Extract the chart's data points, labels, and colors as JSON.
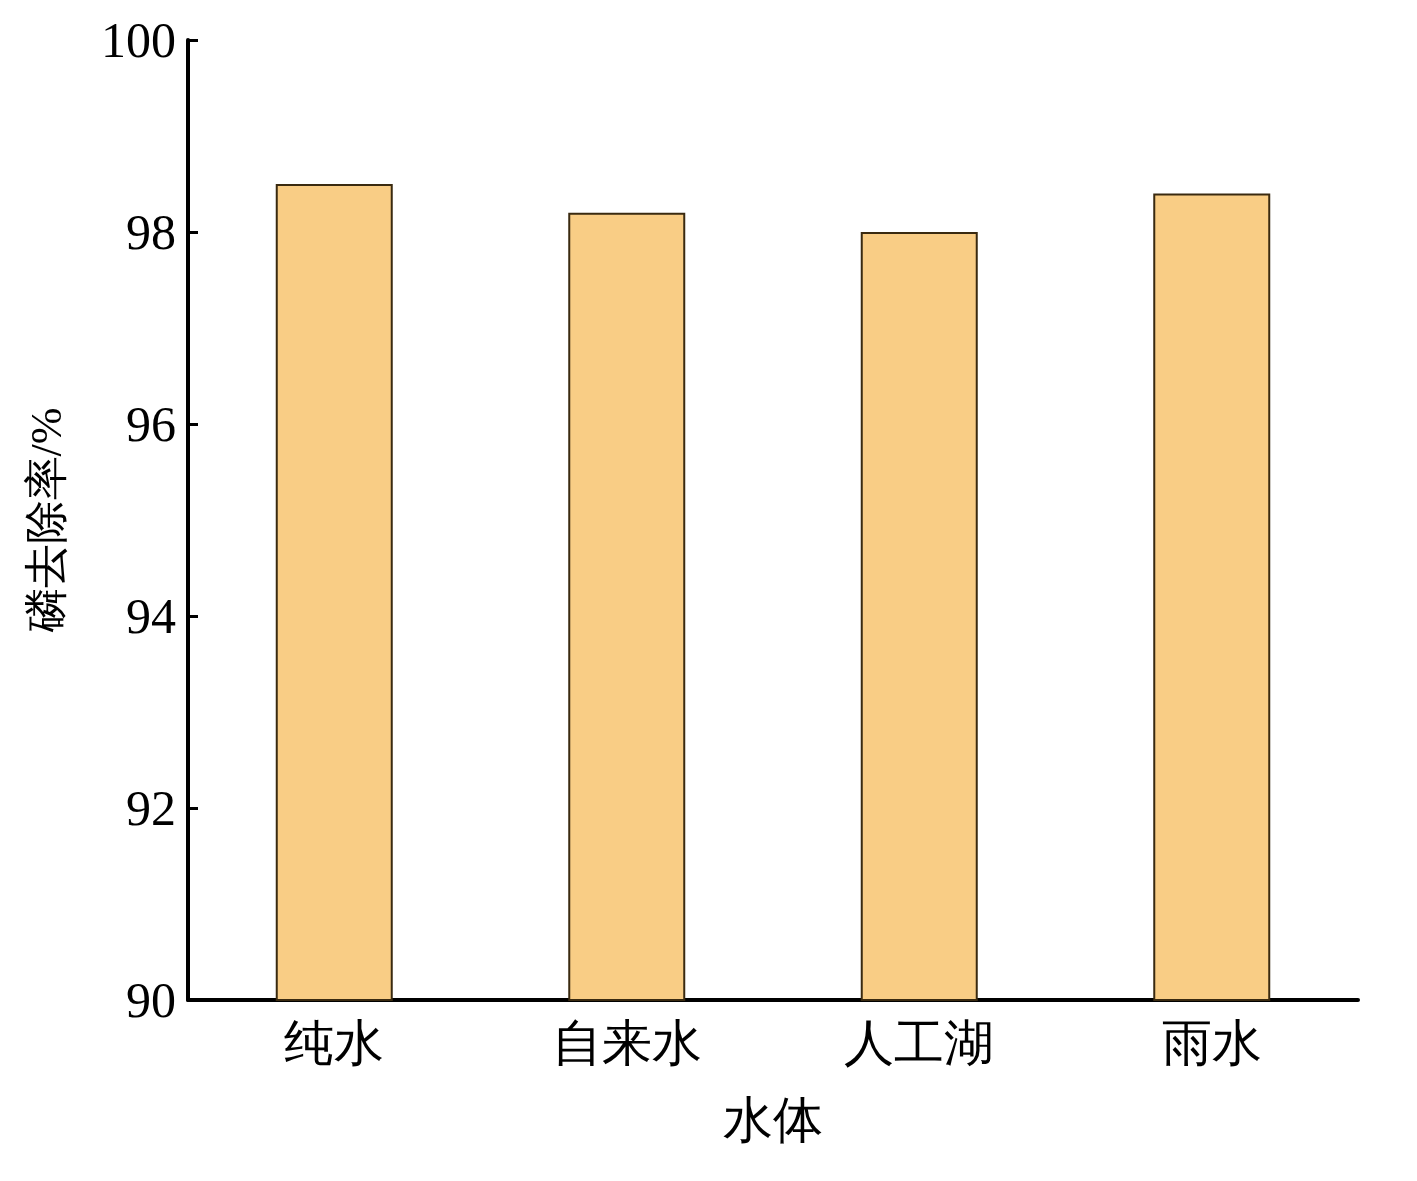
{
  "chart_data": {
    "type": "bar",
    "xlabel": "水体",
    "ylabel": "磷去除率/%",
    "categories": [
      "纯水",
      "自来水",
      "人工湖",
      "雨水"
    ],
    "values": [
      98.5,
      98.2,
      98.0,
      98.4
    ],
    "color": "#f9cd85",
    "ylim": [
      90,
      100
    ],
    "yticks": [
      90,
      92,
      94,
      96,
      98,
      100
    ],
    "grid": false
  }
}
